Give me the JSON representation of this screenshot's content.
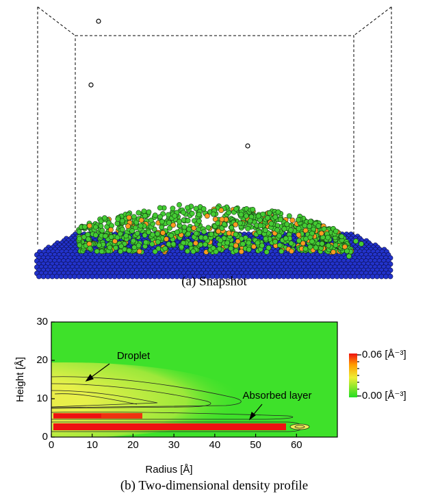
{
  "panel_a": {
    "caption": "(a) Snapshot"
  },
  "chart_data": {
    "type": "contour",
    "caption": "(b) Two-dimensional density profile",
    "xlabel": "Radius [Å]",
    "ylabel": "Height [Å]",
    "xlim": [
      0,
      70
    ],
    "xticks": [
      0,
      10,
      20,
      30,
      40,
      50,
      60
    ],
    "ylim": [
      0,
      30
    ],
    "yticks": [
      0,
      10,
      20,
      30
    ],
    "annotations": [
      "Droplet",
      "Absorbed layer"
    ],
    "colorbar": {
      "lim": [
        0,
        0.06
      ],
      "ticks": [
        {
          "value": 0.06,
          "label": "0.06 [Å⁻³]"
        },
        {
          "value": 0,
          "label": "0.00 [Å⁻³]"
        }
      ]
    }
  }
}
